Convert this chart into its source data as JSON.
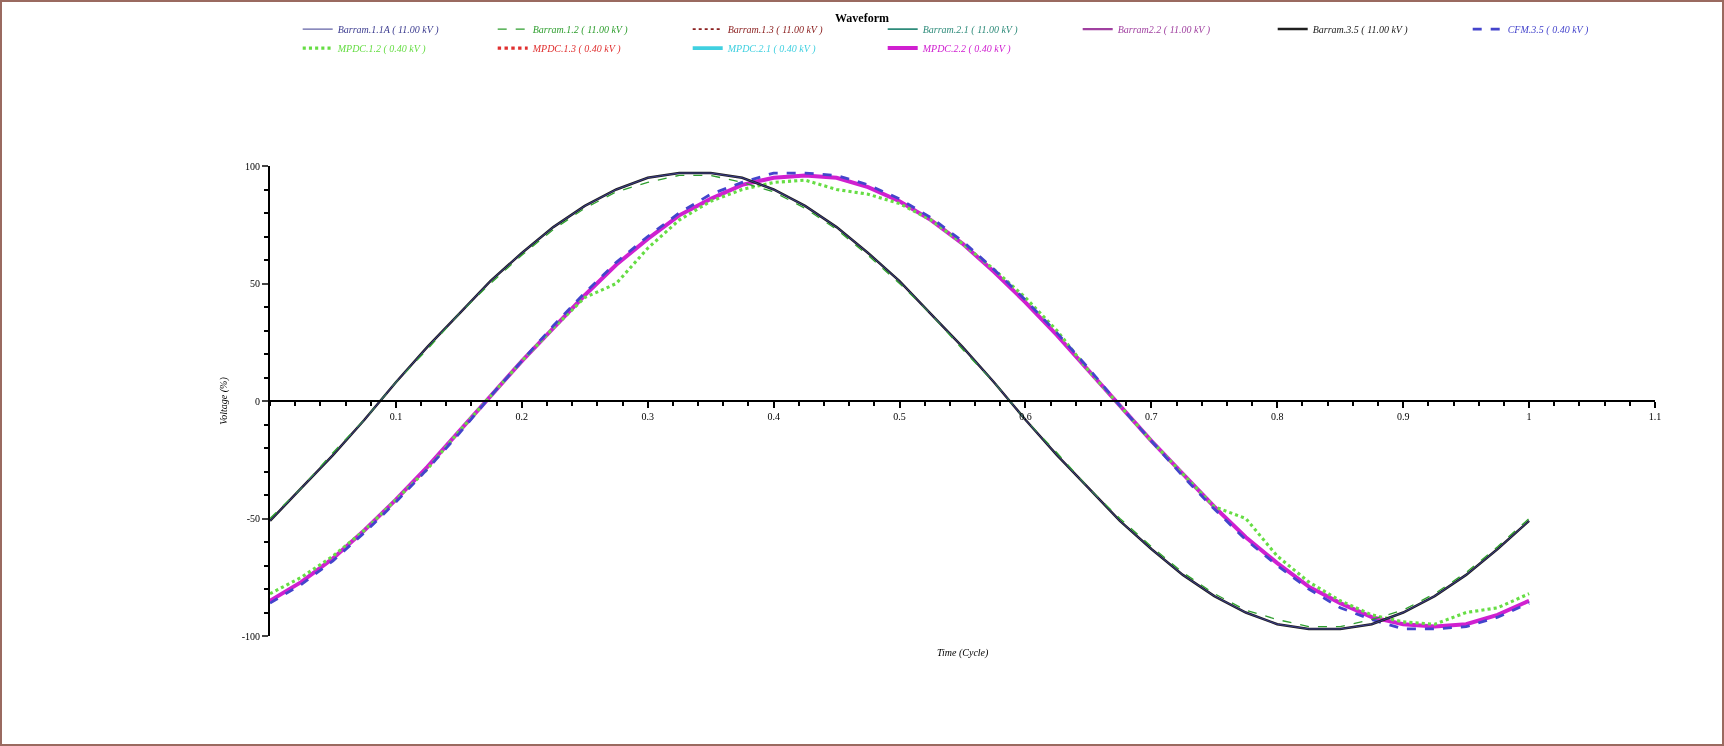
{
  "chart_data": {
    "type": "line",
    "title": "Waveform",
    "xlabel": "Time (Cycle)",
    "ylabel": "Voltage (%)",
    "x": [
      0,
      0.025,
      0.05,
      0.075,
      0.1,
      0.125,
      0.15,
      0.175,
      0.2,
      0.225,
      0.25,
      0.275,
      0.3,
      0.325,
      0.35,
      0.375,
      0.4,
      0.425,
      0.45,
      0.475,
      0.5,
      0.525,
      0.55,
      0.575,
      0.6,
      0.625,
      0.65,
      0.675,
      0.7,
      0.725,
      0.75,
      0.775,
      0.8,
      0.825,
      0.85,
      0.875,
      0.9,
      0.925,
      0.95,
      0.975,
      1
    ],
    "xlim": [
      0,
      1.1
    ],
    "xticks": [
      0.1,
      0.2,
      0.3,
      0.4,
      0.5,
      0.6,
      0.7,
      0.8,
      0.9,
      1.0,
      1.1
    ],
    "ylim": [
      -100,
      100
    ],
    "yticks": [
      -100,
      -50,
      0,
      50,
      100
    ],
    "grid": false,
    "legend": "top",
    "marker": "none",
    "series": [
      {
        "name": "Barram.1.1A ( 11.00 kV )",
        "color": "#3b3b8f",
        "line_style": "solid",
        "values": [
          -51,
          -37,
          -23,
          -8,
          8,
          23,
          37,
          51,
          63,
          74,
          83,
          90,
          95,
          97,
          97,
          95,
          90,
          83,
          74,
          63,
          51,
          37,
          23,
          8,
          -8,
          -23,
          -37,
          -51,
          -63,
          -74,
          -83,
          -90,
          -95,
          -97,
          -97,
          -95,
          -90,
          -83,
          -74,
          -63,
          -51
        ]
      },
      {
        "name": "Barram.1.2 ( 11.00 kV )",
        "color": "#2e9e2e",
        "line_style": "dashed",
        "values": [
          -50,
          -37,
          -22,
          -8,
          8,
          22,
          37,
          50,
          62,
          73,
          82,
          89,
          93,
          96,
          96,
          93,
          89,
          82,
          73,
          62,
          50,
          37,
          22,
          8,
          -8,
          -22,
          -37,
          -50,
          -62,
          -73,
          -82,
          -89,
          -93,
          -96,
          -96,
          -93,
          -89,
          -82,
          -73,
          -62,
          -50
        ]
      },
      {
        "name": "Barram.1.3 ( 11.00 kV )",
        "color": "#8b2020",
        "line_style": "dotted",
        "values": [
          null,
          null,
          null,
          null,
          null,
          null,
          null,
          null,
          null,
          null,
          null,
          null,
          null,
          null,
          null,
          null,
          null,
          null,
          null,
          null,
          null,
          null,
          null,
          null,
          null,
          null,
          null,
          null,
          null,
          null,
          null,
          null,
          null,
          null,
          null,
          null,
          null,
          null,
          null,
          null,
          null
        ]
      },
      {
        "name": "Barram.2.1 ( 11.00 kV )",
        "color": "#2e8b7a",
        "line_style": "solid",
        "values": [
          null,
          null,
          null,
          null,
          null,
          null,
          null,
          null,
          null,
          null,
          null,
          null,
          null,
          null,
          null,
          null,
          null,
          null,
          null,
          null,
          null,
          null,
          null,
          null,
          null,
          null,
          null,
          null,
          null,
          null,
          null,
          null,
          null,
          null,
          null,
          null,
          null,
          null,
          null,
          null,
          null
        ]
      },
      {
        "name": "Barram2.2 ( 11.00 kV )",
        "color": "#a040a0",
        "line_style": "solid",
        "values": [
          null,
          null,
          null,
          null,
          null,
          null,
          null,
          null,
          null,
          null,
          null,
          null,
          null,
          null,
          null,
          null,
          null,
          null,
          null,
          null,
          null,
          null,
          null,
          null,
          null,
          null,
          null,
          null,
          null,
          null,
          null,
          null,
          null,
          null,
          null,
          null,
          null,
          null,
          null,
          null,
          null
        ]
      },
      {
        "name": "Barram.3.5 ( 11.00 kV )",
        "color": "#202020",
        "line_style": "solid",
        "values": [
          -51,
          -37,
          -23,
          -8,
          8,
          23,
          37,
          51,
          63,
          74,
          83,
          90,
          95,
          97,
          97,
          95,
          90,
          83,
          74,
          63,
          51,
          37,
          23,
          8,
          -8,
          -23,
          -37,
          -51,
          -63,
          -74,
          -83,
          -90,
          -95,
          -97,
          -97,
          -95,
          -90,
          -83,
          -74,
          -63,
          -51
        ]
      },
      {
        "name": "CFM.3.5 ( 0.40 kV )",
        "color": "#4444cc",
        "line_style": "dashed",
        "values": [
          -86,
          -78,
          -68,
          -56,
          -43,
          -29,
          -14,
          2,
          17,
          32,
          46,
          59,
          70,
          80,
          88,
          93,
          97,
          97,
          96,
          92,
          86,
          78,
          68,
          56,
          43,
          29,
          14,
          -2,
          -17,
          -32,
          -46,
          -59,
          -70,
          -80,
          -88,
          -93,
          -97,
          -97,
          -96,
          -92,
          -86
        ]
      },
      {
        "name": "MPDC.1.2 ( 0.40 kV )",
        "color": "#66dd44",
        "line_style": "dotted",
        "values": [
          -82,
          -75,
          -66,
          -55,
          -42,
          -29,
          -13,
          2,
          17,
          31,
          44,
          50,
          65,
          77,
          85,
          90,
          93,
          94,
          90,
          88,
          84,
          77,
          67,
          56,
          44,
          30,
          13,
          -2,
          -17,
          -31,
          -45,
          -50,
          -66,
          -77,
          -85,
          -91,
          -94,
          -95,
          -90,
          -88,
          -82
        ]
      },
      {
        "name": "MPDC.1.3 ( 0.40 kV )",
        "color": "#e03030",
        "line_style": "dotted",
        "values": [
          null,
          null,
          null,
          null,
          null,
          null,
          null,
          null,
          null,
          null,
          null,
          null,
          null,
          null,
          null,
          null,
          null,
          null,
          null,
          null,
          null,
          null,
          null,
          null,
          null,
          null,
          null,
          null,
          null,
          null,
          null,
          null,
          null,
          null,
          null,
          null,
          null,
          null,
          null,
          null,
          null
        ]
      },
      {
        "name": "MPDC.2.1 ( 0.40 kV )",
        "color": "#40d0e0",
        "line_style": "solid",
        "values": [
          null,
          null,
          null,
          null,
          null,
          null,
          null,
          null,
          null,
          null,
          null,
          null,
          null,
          null,
          null,
          null,
          null,
          null,
          null,
          null,
          null,
          null,
          null,
          null,
          null,
          null,
          null,
          null,
          null,
          null,
          null,
          null,
          null,
          null,
          null,
          null,
          null,
          null,
          null,
          null,
          null
        ]
      },
      {
        "name": "MPDC.2.2 ( 0.40 kV )",
        "color": "#d020d0",
        "line_style": "solid",
        "values": [
          -85,
          -77,
          -67,
          -55,
          -42,
          -28,
          -13,
          2,
          17,
          31,
          45,
          58,
          69,
          79,
          86,
          92,
          95,
          96,
          95,
          91,
          85,
          77,
          67,
          55,
          42,
          28,
          13,
          -2,
          -17,
          -31,
          -45,
          -58,
          -69,
          -79,
          -86,
          -92,
          -95,
          -96,
          -95,
          -91,
          -85
        ]
      }
    ]
  }
}
